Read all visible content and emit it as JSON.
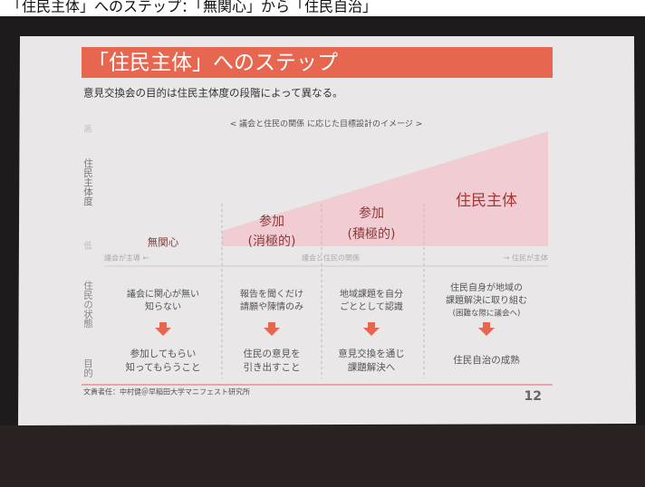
{
  "header": {
    "caption": "「住民主体」へのステップ：「無関心」から「住民自治」"
  },
  "slide": {
    "title": "「住民主体」へのステップ",
    "subtitle": "意見交換会の目的は住民主体度の段階によって異なる。",
    "header_note": "< 議会と住民の関係 に応じた目標設計のイメージ >",
    "axis_top": "高",
    "axis_bottom": "低",
    "axis_label": "住民主体度",
    "relation": {
      "left": "議会が主導 ←",
      "center": "議会と住民の関係",
      "right": "→ 住民が主体"
    },
    "state_label": "住民の状態",
    "purpose_label": "目的",
    "columns": [
      {
        "label": [
          "無関心"
        ],
        "state": [
          "議会に関心が無い",
          "知らない"
        ],
        "purpose": [
          "参加してもらい",
          "知ってもらうこと"
        ]
      },
      {
        "label": [
          "参加",
          "(消極的)"
        ],
        "state": [
          "報告を聞くだけ",
          "請願や陳情のみ"
        ],
        "purpose": [
          "住民の意見を",
          "引き出すこと"
        ]
      },
      {
        "label": [
          "参加",
          "(積極的)"
        ],
        "state": [
          "地域課題を自分",
          "ごととして認識"
        ],
        "purpose": [
          "意見交換を通じ",
          "課題解決へ"
        ]
      },
      {
        "label": [
          "住民主体"
        ],
        "state": [
          "住民自身が地域の",
          "課題解決に取り組む",
          "(困難な際に議会へ)"
        ],
        "purpose": [
          "住民自治の成熟"
        ]
      }
    ],
    "footer": {
      "credit": "文責者任：中村健＠早稲田大学マニフェスト研究所",
      "page": "12"
    }
  }
}
